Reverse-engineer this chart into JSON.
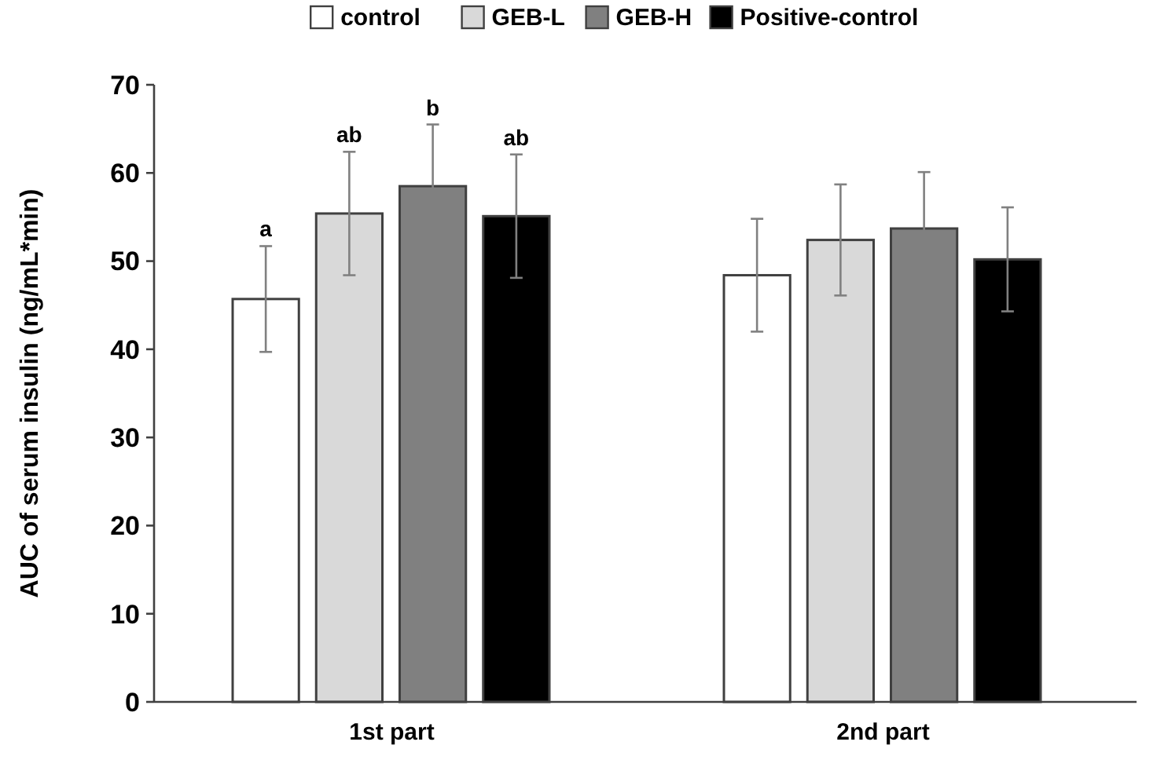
{
  "chart_data": {
    "type": "bar",
    "ylabel": "AUC of serum insulin (ng/mL*min)",
    "categories": [
      "1st part",
      "2nd part"
    ],
    "ylim": [
      0,
      70
    ],
    "yticks": [
      0,
      10,
      20,
      30,
      40,
      50,
      60,
      70
    ],
    "legend": "top",
    "grid": false,
    "series": [
      {
        "name": "control",
        "color": "#ffffff",
        "values": [
          45.7,
          48.4
        ],
        "errors": [
          6,
          6.4
        ],
        "value_labels": [
          "a",
          null
        ]
      },
      {
        "name": "GEB-L",
        "color": "#d9d9d9",
        "values": [
          55.4,
          52.4
        ],
        "errors": [
          7,
          6.3
        ],
        "value_labels": [
          "ab",
          null
        ]
      },
      {
        "name": "GEB-H",
        "color": "#808080",
        "values": [
          58.5,
          53.7
        ],
        "errors": [
          7,
          6.4
        ],
        "value_labels": [
          "b",
          null
        ]
      },
      {
        "name": "Positive-control",
        "color": "#000000",
        "values": [
          55.1,
          50.2
        ],
        "errors": [
          7,
          5.9
        ],
        "value_labels": [
          "ab",
          null
        ]
      }
    ]
  }
}
